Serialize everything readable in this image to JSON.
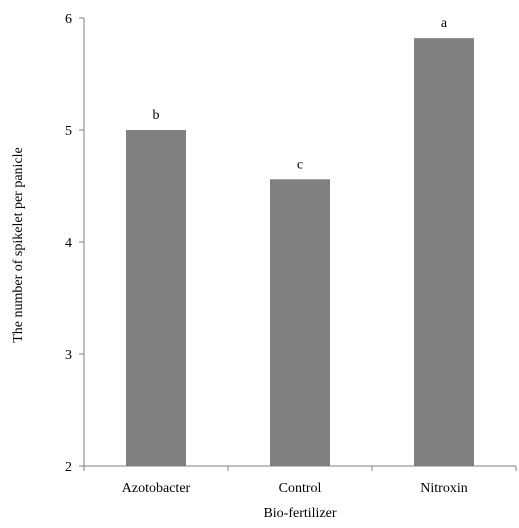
{
  "chart_data": {
    "type": "bar",
    "categories": [
      "Azotobacter",
      "Control",
      "Nitroxin"
    ],
    "values": [
      5.0,
      4.56,
      5.82
    ],
    "data_labels": [
      "b",
      "c",
      "a"
    ],
    "xlabel": "Bio-fertilizer",
    "ylabel": "The number of spikelet per panicle",
    "ylim": [
      2,
      6
    ],
    "yticks": [
      2,
      3,
      4,
      5,
      6
    ],
    "grid": false,
    "legend": "none",
    "colors": {
      "bar": "#808080",
      "axis": "#808080",
      "text": "#000000"
    }
  }
}
